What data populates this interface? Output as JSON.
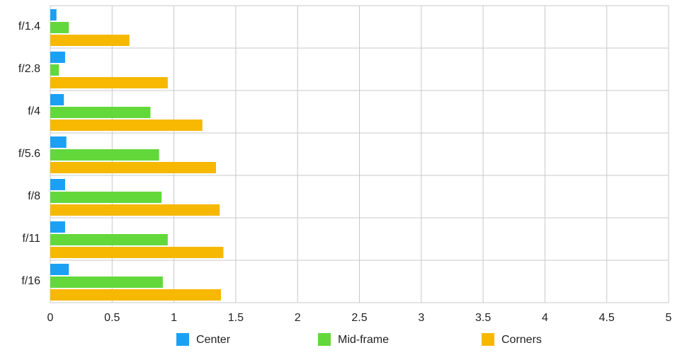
{
  "chart_data": {
    "type": "hbar",
    "categories": [
      "f/1.4",
      "f/2.8",
      "f/4",
      "f/5.6",
      "f/8",
      "f/11",
      "f/16"
    ],
    "series": [
      {
        "name": "Center",
        "color": "#1aa1f5",
        "values": [
          0.05,
          0.12,
          0.11,
          0.13,
          0.12,
          0.12,
          0.15
        ]
      },
      {
        "name": "Mid-frame",
        "color": "#63d83b",
        "values": [
          0.15,
          0.07,
          0.81,
          0.88,
          0.9,
          0.95,
          0.91
        ]
      },
      {
        "name": "Corners",
        "color": "#f6b800",
        "values": [
          0.64,
          0.95,
          1.23,
          1.34,
          1.37,
          1.4,
          1.38
        ]
      }
    ],
    "xlim": [
      0,
      5
    ],
    "xticks": [
      0,
      0.5,
      1,
      1.5,
      2,
      2.5,
      3,
      3.5,
      4,
      4.5,
      5
    ],
    "grid": true,
    "legend": "bottom"
  }
}
